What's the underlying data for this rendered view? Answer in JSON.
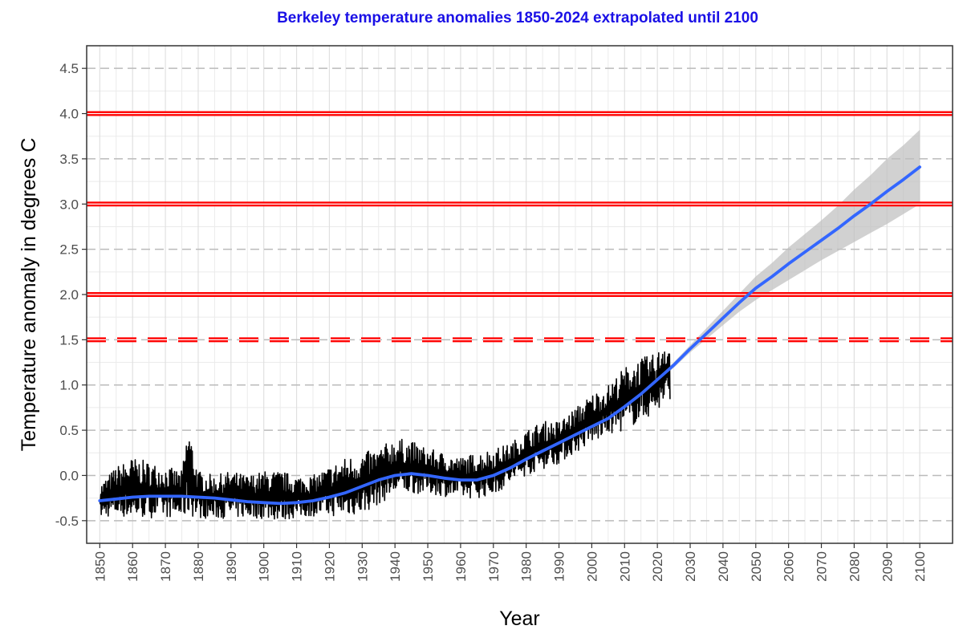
{
  "chart_data": {
    "type": "line",
    "title": "Berkeley temperature anomalies 1850-2024 extrapolated until 2100",
    "xlabel": "Year",
    "ylabel": "Temperature anomaly in degrees C",
    "xlim": [
      1846,
      2110
    ],
    "ylim": [
      -0.75,
      4.75
    ],
    "x_ticks": [
      1850,
      1860,
      1870,
      1880,
      1890,
      1900,
      1910,
      1920,
      1930,
      1940,
      1950,
      1960,
      1970,
      1980,
      1990,
      2000,
      2010,
      2020,
      2030,
      2040,
      2050,
      2060,
      2070,
      2080,
      2090,
      2100
    ],
    "y_ticks": [
      -0.5,
      0.0,
      0.5,
      1.0,
      1.5,
      2.0,
      2.5,
      3.0,
      3.5,
      4.0,
      4.5
    ],
    "y_tick_labels": [
      "-0.5",
      "0.0",
      "0.5",
      "1.0",
      "1.5",
      "2.0",
      "2.5",
      "3.0",
      "3.5",
      "4.0",
      "4.5"
    ],
    "grid": true,
    "colors": {
      "title": "#1a10e6",
      "monthly_series": "#000000",
      "trend": "#3366ff",
      "ribbon": "#bdbdbd",
      "thresholds": "#ff0000",
      "panel_border": "#333333",
      "grid_major": "#bbbbbb",
      "grid_minor": "#ebebeb"
    },
    "thresholds": [
      {
        "y": 1.5,
        "style": "dashed"
      },
      {
        "y": 2.0,
        "style": "solid"
      },
      {
        "y": 3.0,
        "style": "solid"
      },
      {
        "y": 4.0,
        "style": "solid"
      }
    ],
    "series": [
      {
        "kind": "monthly_anomaly_envelope",
        "x": [
          1850,
          1855,
          1860,
          1865,
          1870,
          1875,
          1877,
          1880,
          1885,
          1890,
          1895,
          1900,
          1905,
          1910,
          1915,
          1920,
          1925,
          1930,
          1935,
          1940,
          1945,
          1950,
          1955,
          1960,
          1965,
          1970,
          1975,
          1980,
          1985,
          1990,
          1995,
          2000,
          2005,
          2010,
          2015,
          2020,
          2022,
          2024
        ],
        "low": [
          -0.47,
          -0.45,
          -0.48,
          -0.47,
          -0.46,
          -0.47,
          -0.45,
          -0.47,
          -0.48,
          -0.47,
          -0.47,
          -0.48,
          -0.5,
          -0.47,
          -0.45,
          -0.45,
          -0.45,
          -0.43,
          -0.32,
          -0.22,
          -0.2,
          -0.2,
          -0.23,
          -0.25,
          -0.25,
          -0.22,
          -0.1,
          0.0,
          0.07,
          0.13,
          0.25,
          0.35,
          0.45,
          0.5,
          0.6,
          0.7,
          0.75,
          0.85
        ],
        "high": [
          -0.1,
          0.1,
          0.2,
          0.15,
          0.1,
          0.05,
          0.57,
          0.05,
          0.0,
          0.05,
          0.0,
          0.05,
          0.05,
          0.0,
          0.0,
          0.1,
          0.2,
          0.25,
          0.3,
          0.42,
          0.38,
          0.3,
          0.25,
          0.2,
          0.25,
          0.3,
          0.35,
          0.5,
          0.6,
          0.6,
          0.75,
          0.9,
          1.0,
          1.2,
          1.3,
          1.35,
          1.55,
          1.45
        ]
      },
      {
        "kind": "smoothed_trend",
        "x": [
          1850,
          1855,
          1860,
          1865,
          1870,
          1875,
          1880,
          1885,
          1890,
          1895,
          1900,
          1905,
          1910,
          1915,
          1920,
          1925,
          1930,
          1935,
          1940,
          1945,
          1950,
          1955,
          1960,
          1965,
          1970,
          1975,
          1980,
          1985,
          1990,
          1995,
          2000,
          2005,
          2010,
          2015,
          2020,
          2025,
          2030,
          2035,
          2040,
          2045,
          2050,
          2055,
          2060,
          2065,
          2070,
          2075,
          2080,
          2085,
          2090,
          2095,
          2100
        ],
        "y": [
          -0.28,
          -0.26,
          -0.24,
          -0.23,
          -0.23,
          -0.23,
          -0.24,
          -0.25,
          -0.27,
          -0.29,
          -0.3,
          -0.31,
          -0.3,
          -0.28,
          -0.24,
          -0.19,
          -0.12,
          -0.05,
          0.0,
          0.02,
          0.0,
          -0.03,
          -0.05,
          -0.05,
          0.0,
          0.08,
          0.18,
          0.27,
          0.36,
          0.45,
          0.54,
          0.63,
          0.76,
          0.9,
          1.06,
          1.22,
          1.4,
          1.57,
          1.74,
          1.91,
          2.07,
          2.2,
          2.34,
          2.47,
          2.6,
          2.73,
          2.87,
          3.0,
          3.14,
          3.27,
          3.41
        ],
        "ci_low": [
          -0.3,
          -0.28,
          -0.26,
          -0.25,
          -0.25,
          -0.25,
          -0.26,
          -0.27,
          -0.29,
          -0.31,
          -0.32,
          -0.33,
          -0.32,
          -0.3,
          -0.26,
          -0.21,
          -0.14,
          -0.07,
          -0.02,
          0.0,
          -0.02,
          -0.05,
          -0.07,
          -0.07,
          -0.02,
          0.06,
          0.16,
          0.25,
          0.34,
          0.43,
          0.52,
          0.61,
          0.74,
          0.88,
          1.04,
          1.19,
          1.36,
          1.51,
          1.66,
          1.81,
          1.94,
          2.05,
          2.16,
          2.27,
          2.38,
          2.48,
          2.58,
          2.68,
          2.78,
          2.89,
          3.0
        ],
        "ci_high": [
          -0.26,
          -0.24,
          -0.22,
          -0.21,
          -0.21,
          -0.21,
          -0.22,
          -0.23,
          -0.25,
          -0.27,
          -0.28,
          -0.29,
          -0.28,
          -0.26,
          -0.22,
          -0.17,
          -0.1,
          -0.03,
          0.02,
          0.04,
          0.02,
          -0.01,
          -0.03,
          -0.03,
          0.02,
          0.1,
          0.2,
          0.29,
          0.38,
          0.47,
          0.56,
          0.65,
          0.78,
          0.92,
          1.08,
          1.25,
          1.44,
          1.63,
          1.82,
          2.01,
          2.2,
          2.35,
          2.52,
          2.67,
          2.82,
          2.98,
          3.16,
          3.32,
          3.5,
          3.65,
          3.82
        ]
      }
    ]
  }
}
